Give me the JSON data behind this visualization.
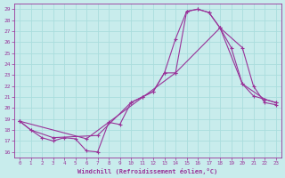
{
  "xlabel": "Windchill (Refroidissement éolien,°C)",
  "xlim": [
    -0.5,
    23.5
  ],
  "ylim": [
    15.5,
    29.5
  ],
  "xticks": [
    0,
    1,
    2,
    3,
    4,
    5,
    6,
    7,
    8,
    9,
    10,
    11,
    12,
    13,
    14,
    15,
    16,
    17,
    18,
    19,
    20,
    21,
    22,
    23
  ],
  "yticks": [
    16,
    17,
    18,
    19,
    20,
    21,
    22,
    23,
    24,
    25,
    26,
    27,
    28,
    29
  ],
  "background_color": "#c8ecec",
  "line_color": "#993399",
  "grid_color": "#aadddd",
  "curve1_x": [
    0,
    1,
    2,
    3,
    4,
    5,
    6,
    7,
    8,
    9,
    10,
    11,
    12,
    13,
    14,
    15,
    16,
    17,
    18,
    19,
    20,
    21,
    22,
    23
  ],
  "curve1_y": [
    18.8,
    18.0,
    17.3,
    17.0,
    17.3,
    17.2,
    16.1,
    16.0,
    18.7,
    18.5,
    20.5,
    21.0,
    21.5,
    23.2,
    26.3,
    28.8,
    29.0,
    28.7,
    27.3,
    25.5,
    22.2,
    21.1,
    20.8,
    20.5
  ],
  "curve2_x": [
    0,
    1,
    3,
    7,
    10,
    11,
    12,
    13,
    14,
    15,
    16,
    17,
    18,
    20,
    22,
    23
  ],
  "curve2_y": [
    18.8,
    18.0,
    17.3,
    17.5,
    20.5,
    21.0,
    21.5,
    23.2,
    23.2,
    28.8,
    29.0,
    28.7,
    27.3,
    22.2,
    20.8,
    20.5
  ],
  "curve3_x": [
    0,
    6,
    14,
    18,
    20,
    21,
    22,
    23
  ],
  "curve3_y": [
    18.8,
    17.2,
    23.2,
    27.3,
    25.5,
    22.0,
    20.5,
    20.3
  ]
}
